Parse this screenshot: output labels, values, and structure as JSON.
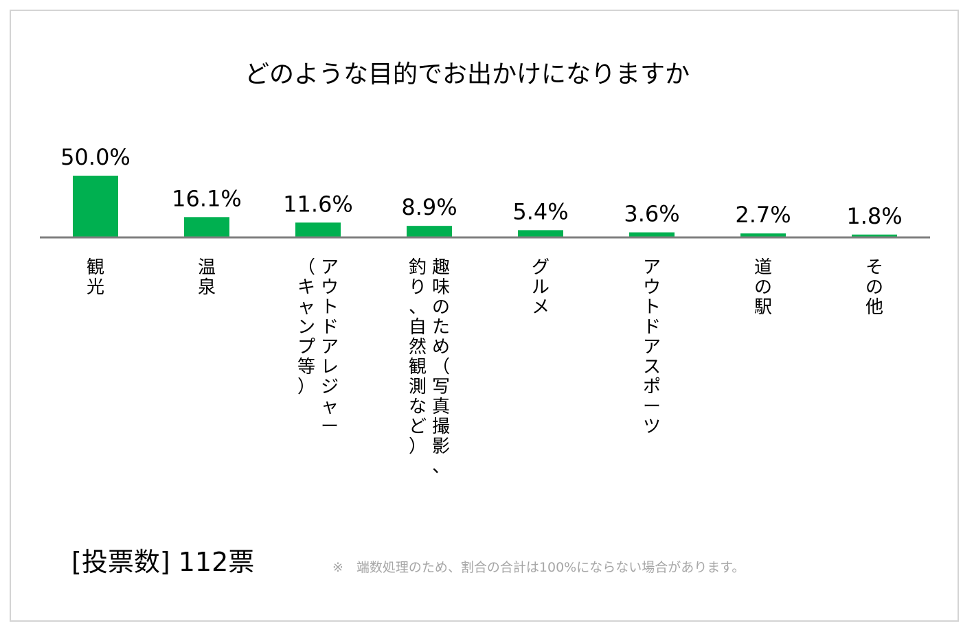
{
  "chart_data": {
    "type": "bar",
    "title": "どのような目的でお出かけになりますか",
    "categories": [
      [
        "観光"
      ],
      [
        "温泉"
      ],
      [
        "アウトドアレジャー",
        "（キャンプ等）"
      ],
      [
        "趣味のため（写真撮影、",
        "釣り、自然観測など）"
      ],
      [
        "グルメ"
      ],
      [
        "アウトドアスポーツ"
      ],
      [
        "道の駅"
      ],
      [
        "その他"
      ]
    ],
    "values": [
      50.0,
      16.1,
      11.6,
      8.9,
      5.4,
      3.6,
      2.7,
      1.8
    ],
    "value_labels": [
      "50.0%",
      "16.1%",
      "11.6%",
      "8.9%",
      "5.4%",
      "3.6%",
      "2.7%",
      "1.8%"
    ],
    "ylim": [
      0,
      50
    ],
    "bar_color": "#00b050",
    "axis_color": "#7f7f7f",
    "grid": false,
    "legend": "none"
  },
  "footer": {
    "votes": "[投票数] 112票",
    "note": "※　端数処理のため、割合の合計は100%にならない場合があります。"
  }
}
